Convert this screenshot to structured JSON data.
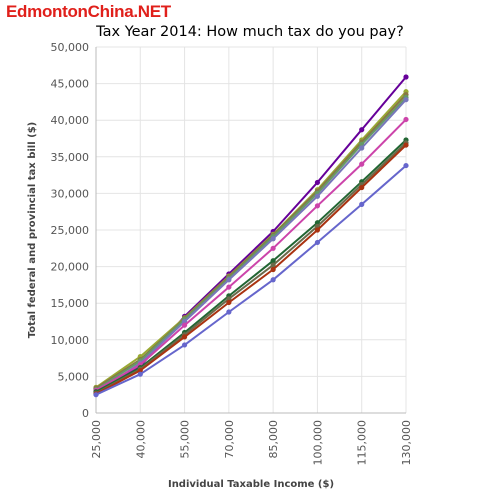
{
  "watermark": "EdmontonChina.NET",
  "chart_data": {
    "type": "line",
    "title": "Tax Year 2014: How much tax do you pay?",
    "xlabel": "Individual Taxable Income ($)",
    "ylabel": "Total federal and provincial tax bill ($)",
    "x": [
      25000,
      40000,
      55000,
      70000,
      85000,
      100000,
      115000,
      130000
    ],
    "x_tick_labels": [
      "25,000",
      "40,000",
      "55,000",
      "70,000",
      "85,000",
      "100,000",
      "115,000",
      "130,000"
    ],
    "y_tick_labels": [
      "0",
      "5,000",
      "10,000",
      "15,000",
      "20,000",
      "25,000",
      "30,000",
      "35,000",
      "40,000",
      "45,000",
      "50,000"
    ],
    "ylim": [
      0,
      50000
    ],
    "grid": true,
    "legend": "none",
    "series": [
      {
        "color": "#660099",
        "values": [
          3300,
          6400,
          13200,
          19000,
          24800,
          31500,
          38700,
          45900
        ]
      },
      {
        "color": "#99aa33",
        "values": [
          3500,
          7700,
          13000,
          18700,
          24400,
          30500,
          37300,
          43900
        ]
      },
      {
        "color": "#887744",
        "values": [
          3400,
          7300,
          12900,
          18600,
          24300,
          30300,
          37000,
          43500
        ]
      },
      {
        "color": "#669966",
        "values": [
          3200,
          7100,
          12800,
          18400,
          24100,
          30000,
          36700,
          43100
        ]
      },
      {
        "color": "#7777bb",
        "values": [
          2800,
          6800,
          12500,
          18200,
          23800,
          29600,
          36200,
          42800
        ]
      },
      {
        "color": "#cc44aa",
        "values": [
          3100,
          6600,
          12000,
          17200,
          22500,
          28300,
          34000,
          40100
        ]
      },
      {
        "color": "#226633",
        "values": [
          2900,
          6200,
          11000,
          16000,
          20800,
          26000,
          31600,
          37300
        ]
      },
      {
        "color": "#6a6a4a",
        "values": [
          2700,
          6000,
          10700,
          15600,
          20200,
          25500,
          31200,
          36900
        ]
      },
      {
        "color": "#aa3311",
        "values": [
          2600,
          5800,
          10400,
          15100,
          19600,
          25000,
          30800,
          36600
        ]
      },
      {
        "color": "#6666cc",
        "values": [
          2500,
          5300,
          9300,
          13800,
          18200,
          23300,
          28500,
          33800
        ]
      }
    ]
  }
}
